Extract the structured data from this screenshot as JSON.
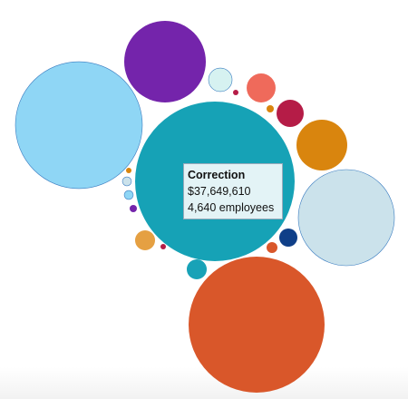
{
  "chart_data": {
    "type": "bubble",
    "values": [
      37649610,
      27350000,
      23820000,
      9850000,
      13660000,
      3810000,
      1240000,
      1090000,
      820000,
      486200,
      590000,
      590000,
      175000,
      120000,
      120000,
      78000,
      78000,
      44000,
      44000,
      44000
    ],
    "colors": [
      "#16a2b6",
      "#d9572a",
      "#8fd6f5",
      "#7424ab",
      "#cbe2eb",
      "#d9850e",
      "#ef6a5b",
      "#b51c47",
      "#d6f2f1",
      "#0f3f88",
      "#18a2b7",
      "#e5a042",
      "#d9572a",
      "#8fd6f5",
      "#cbe2eb",
      "#7424ab",
      "#d9850e",
      "#b51c47",
      "#d9850e",
      "#b51c47"
    ],
    "tooltip": {
      "category": "Correction",
      "value": 37649610,
      "value_label": "$37,649,610",
      "employees": 4640,
      "employees_label": "4,640 employees"
    }
  }
}
